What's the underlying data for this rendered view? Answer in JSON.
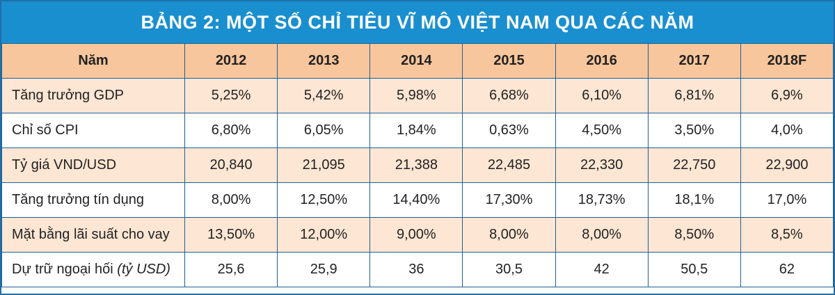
{
  "title": "BẢNG 2: MỘT SỐ CHỈ TIÊU VĨ MÔ VIỆT NAM QUA CÁC NĂM",
  "table": {
    "header": [
      "Năm",
      "2012",
      "2013",
      "2014",
      "2015",
      "2016",
      "2017",
      "2018F"
    ],
    "rows": [
      {
        "label": "Tăng trưởng GDP",
        "cells": [
          "5,25%",
          "5,42%",
          "5,98%",
          "6,68%",
          "6,10%",
          "6,81%",
          "6,9%"
        ]
      },
      {
        "label": "Chỉ số CPI",
        "cells": [
          "6,80%",
          "6,05%",
          "1,84%",
          "0,63%",
          "4,50%",
          "3,50%",
          "4,0%"
        ]
      },
      {
        "label": "Tỷ giá VND/USD",
        "cells": [
          "20,840",
          "21,095",
          "21,388",
          "22,485",
          "22,330",
          "22,750",
          "22,900"
        ]
      },
      {
        "label": "Tăng trưởng tín dụng",
        "cells": [
          "8,00%",
          "12,50%",
          "14,40%",
          "17,30%",
          "18,73%",
          "18,1%",
          "17,0%"
        ]
      },
      {
        "label": "Mặt bằng lãi suất cho vay",
        "cells": [
          "13,50%",
          "12,00%",
          "9,00%",
          "8,00%",
          "8,00%",
          "8,50%",
          "8,5%"
        ]
      },
      {
        "label": "Dự trữ ngoại hối",
        "unit": "(tỷ USD)",
        "cells": [
          "25,6",
          "25,9",
          "36",
          "30,5",
          "42",
          "50,5",
          "62"
        ]
      }
    ]
  }
}
